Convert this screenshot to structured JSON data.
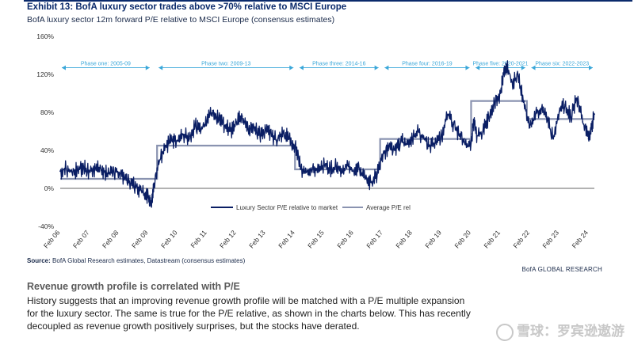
{
  "header": {
    "title": "Exhibit 13: BofA luxury sector trades above >70% relative to MSCI Europe",
    "subtitle": "BofA luxury sector 12m forward P/E relative to MSCI Europe (consensus estimates)"
  },
  "colors": {
    "navy": "#0a1e64",
    "average": "#8a93b0",
    "phase": "#3aa7d9",
    "title": "#0a2a6b"
  },
  "chart_data": {
    "type": "line",
    "ylim": [
      -40,
      160
    ],
    "y_ticks": [
      -40,
      0,
      40,
      80,
      120,
      160
    ],
    "y_tick_labels": [
      "-40%",
      "0%",
      "40%",
      "80%",
      "120%",
      "160%"
    ],
    "x_range": [
      2006.0,
      2024.2
    ],
    "x_tick_labels": [
      "Feb 06",
      "Feb 07",
      "Feb 08",
      "Feb 09",
      "Feb 10",
      "Feb 11",
      "Feb 12",
      "Feb 13",
      "Feb 14",
      "Feb 15",
      "Feb 16",
      "Feb 17",
      "Feb 18",
      "Feb 19",
      "Feb 20",
      "Feb 21",
      "Feb 22",
      "Feb 23",
      "Feb 24"
    ],
    "legend_placement": "bottom-right",
    "phases": [
      {
        "label": "Phase one: 2005-09",
        "start": 2006.0,
        "end": 2009.1
      },
      {
        "label": "Phase two: 2009-13",
        "start": 2009.3,
        "end": 2014.0
      },
      {
        "label": "Phase three: 2014-16",
        "start": 2014.1,
        "end": 2016.9
      },
      {
        "label": "Phase four: 2016-19",
        "start": 2017.0,
        "end": 2020.0
      },
      {
        "label": "Phase five: 2020-2021",
        "start": 2020.1,
        "end": 2021.9
      },
      {
        "label": "Phase six: 2022-2023",
        "start": 2022.0,
        "end": 2024.2
      }
    ],
    "series": [
      {
        "name": "Luxury Sector P/E relative to market",
        "x": [
          2006.0,
          2006.2,
          2006.4,
          2006.6,
          2006.8,
          2007.0,
          2007.2,
          2007.4,
          2007.6,
          2007.8,
          2008.0,
          2008.2,
          2008.4,
          2008.6,
          2008.8,
          2009.0,
          2009.1,
          2009.2,
          2009.4,
          2009.6,
          2009.8,
          2010.0,
          2010.2,
          2010.4,
          2010.6,
          2010.8,
          2011.0,
          2011.2,
          2011.4,
          2011.6,
          2011.8,
          2012.0,
          2012.2,
          2012.4,
          2012.6,
          2012.8,
          2013.0,
          2013.2,
          2013.4,
          2013.6,
          2013.8,
          2014.0,
          2014.2,
          2014.4,
          2014.6,
          2014.8,
          2015.0,
          2015.2,
          2015.4,
          2015.6,
          2015.8,
          2016.0,
          2016.2,
          2016.4,
          2016.6,
          2016.8,
          2017.0,
          2017.2,
          2017.4,
          2017.6,
          2017.8,
          2018.0,
          2018.2,
          2018.4,
          2018.6,
          2018.8,
          2019.0,
          2019.2,
          2019.4,
          2019.6,
          2019.8,
          2020.0,
          2020.1,
          2020.2,
          2020.4,
          2020.6,
          2020.8,
          2021.0,
          2021.1,
          2021.2,
          2021.4,
          2021.6,
          2021.8,
          2022.0,
          2022.2,
          2022.4,
          2022.6,
          2022.8,
          2023.0,
          2023.2,
          2023.4,
          2023.6,
          2023.8,
          2024.0,
          2024.1,
          2024.2
        ],
        "values": [
          18,
          21,
          17,
          20,
          22,
          18,
          21,
          19,
          16,
          18,
          17,
          10,
          5,
          2,
          -4,
          -10,
          -17,
          5,
          30,
          45,
          50,
          50,
          57,
          52,
          66,
          62,
          70,
          82,
          72,
          66,
          60,
          70,
          76,
          62,
          65,
          56,
          62,
          55,
          50,
          60,
          52,
          45,
          20,
          18,
          22,
          17,
          25,
          20,
          23,
          16,
          24,
          18,
          20,
          10,
          6,
          15,
          36,
          45,
          40,
          50,
          46,
          52,
          60,
          52,
          45,
          48,
          55,
          78,
          67,
          55,
          46,
          48,
          72,
          55,
          60,
          75,
          90,
          100,
          120,
          130,
          112,
          118,
          92,
          64,
          78,
          84,
          72,
          52,
          80,
          88,
          75,
          95,
          70,
          52,
          64,
          78
        ]
      },
      {
        "name": "Average P/E rel",
        "step": [
          [
            2006.0,
            10
          ],
          [
            2009.3,
            10
          ],
          [
            2009.3,
            45
          ],
          [
            2014.0,
            45
          ],
          [
            2014.0,
            20
          ],
          [
            2016.9,
            20
          ],
          [
            2016.9,
            52
          ],
          [
            2020.0,
            52
          ],
          [
            2020.0,
            92
          ],
          [
            2021.9,
            92
          ],
          [
            2021.9,
            73
          ],
          [
            2024.2,
            73
          ]
        ]
      }
    ]
  },
  "source": {
    "label": "Source:",
    "text": "BofA Global Research estimates, Datastream (consensus estimates)"
  },
  "brand_credit": "BofA GLOBAL RESEARCH",
  "section": {
    "heading": "Revenue growth profile is correlated with P/E",
    "body": "History suggests that an improving revenue growth profile will be matched with a P/E multiple expansion for the luxury sector. The same is true for the P/E relative, as shown in the charts below. This has recently decoupled as revenue growth positively surprises, but the stocks have derated."
  },
  "watermark": {
    "icon": "snowball-logo-icon",
    "text": "雪球：罗宾逊遨游"
  }
}
